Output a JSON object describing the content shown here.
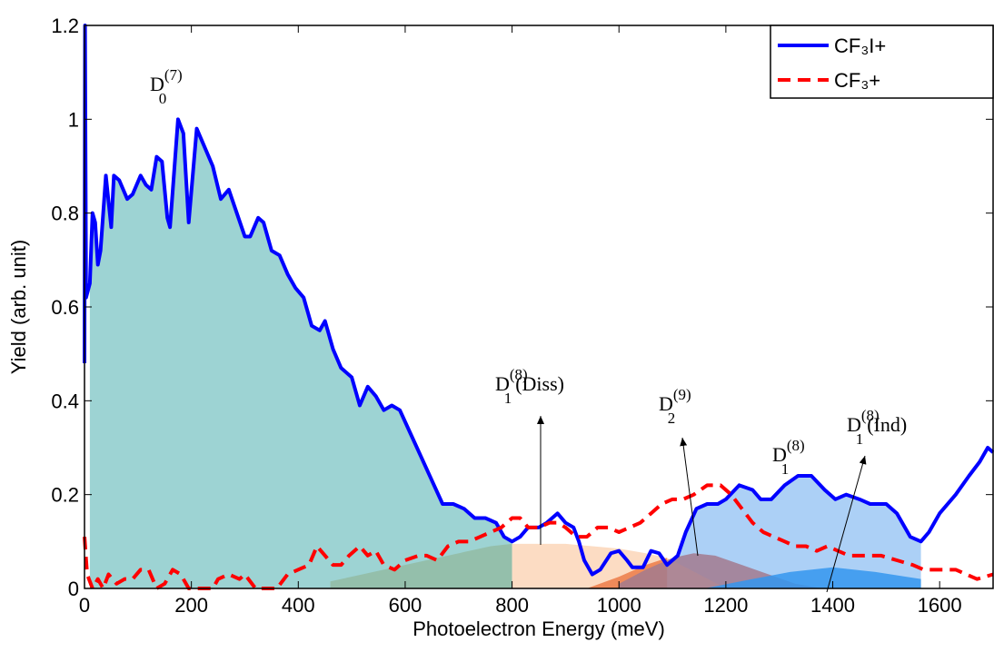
{
  "chart_data": {
    "type": "line",
    "xlabel": "Photoelectron Energy (meV)",
    "ylabel": "Yield (arb. unit)",
    "xlim": [
      0,
      1700
    ],
    "xticks": [
      0,
      200,
      400,
      600,
      800,
      1000,
      1200,
      1400,
      1600
    ],
    "ylim": [
      0,
      1.2
    ],
    "yticks": [
      0,
      0.2,
      0.4,
      0.6,
      0.8,
      1,
      1.2
    ],
    "legend": "upper right",
    "series": [
      {
        "name": "CF₃I+",
        "color": "#0000ff",
        "style": "solid",
        "x": [
          0,
          1,
          3,
          10,
          15,
          20,
          25,
          30,
          40,
          50,
          55,
          65,
          80,
          90,
          105,
          115,
          125,
          135,
          145,
          155,
          160,
          175,
          185,
          195,
          210,
          225,
          240,
          255,
          270,
          285,
          300,
          310,
          325,
          335,
          350,
          365,
          380,
          395,
          410,
          425,
          440,
          450,
          465,
          480,
          500,
          515,
          530,
          545,
          560,
          575,
          590,
          610,
          630,
          650,
          670,
          690,
          710,
          730,
          750,
          770,
          785,
          800,
          815,
          830,
          850,
          865,
          885,
          900,
          915,
          925,
          935,
          950,
          965,
          985,
          1000,
          1015,
          1025,
          1045,
          1060,
          1075,
          1090,
          1110,
          1125,
          1145,
          1165,
          1185,
          1200,
          1225,
          1250,
          1265,
          1285,
          1310,
          1335,
          1360,
          1385,
          1405,
          1425,
          1450,
          1470,
          1500,
          1520,
          1545,
          1565,
          1580,
          1600,
          1630,
          1655,
          1675,
          1690,
          1700
        ],
        "values": [
          0.48,
          1.2,
          0.62,
          0.65,
          0.8,
          0.78,
          0.69,
          0.72,
          0.88,
          0.77,
          0.88,
          0.87,
          0.83,
          0.84,
          0.88,
          0.86,
          0.85,
          0.92,
          0.91,
          0.79,
          0.77,
          1.0,
          0.97,
          0.78,
          0.98,
          0.94,
          0.9,
          0.83,
          0.85,
          0.8,
          0.75,
          0.75,
          0.79,
          0.78,
          0.72,
          0.71,
          0.67,
          0.64,
          0.62,
          0.56,
          0.55,
          0.57,
          0.51,
          0.47,
          0.45,
          0.39,
          0.43,
          0.41,
          0.38,
          0.39,
          0.38,
          0.33,
          0.28,
          0.23,
          0.18,
          0.18,
          0.17,
          0.15,
          0.15,
          0.14,
          0.11,
          0.1,
          0.11,
          0.13,
          0.13,
          0.14,
          0.16,
          0.14,
          0.13,
          0.1,
          0.06,
          0.03,
          0.04,
          0.075,
          0.08,
          0.06,
          0.045,
          0.045,
          0.08,
          0.075,
          0.05,
          0.07,
          0.12,
          0.17,
          0.18,
          0.18,
          0.19,
          0.22,
          0.21,
          0.19,
          0.19,
          0.22,
          0.24,
          0.24,
          0.21,
          0.19,
          0.2,
          0.19,
          0.18,
          0.18,
          0.16,
          0.11,
          0.1,
          0.12,
          0.16,
          0.2,
          0.24,
          0.27,
          0.3,
          0.29
        ]
      },
      {
        "name": "CF₃+",
        "color": "#ff0000",
        "style": "dashed",
        "x": [
          0,
          5,
          15,
          25,
          35,
          45,
          60,
          75,
          90,
          105,
          120,
          135,
          150,
          165,
          180,
          195,
          240,
          250,
          270,
          290,
          300,
          320,
          360,
          380,
          400,
          420,
          435,
          450,
          465,
          480,
          495,
          515,
          530,
          545,
          560,
          580,
          600,
          625,
          640,
          660,
          680,
          700,
          720,
          740,
          760,
          780,
          800,
          815,
          830,
          850,
          870,
          885,
          900,
          920,
          940,
          960,
          980,
          1000,
          1020,
          1040,
          1060,
          1080,
          1100,
          1120,
          1140,
          1165,
          1190,
          1210,
          1230,
          1250,
          1270,
          1290,
          1310,
          1330,
          1350,
          1370,
          1390,
          1410,
          1430,
          1460,
          1490,
          1520,
          1550,
          1570,
          1600,
          1630,
          1650,
          1670,
          1700
        ],
        "values": [
          0.11,
          0.03,
          0.0,
          0.02,
          0.0,
          0.03,
          0.01,
          0.02,
          0.02,
          0.04,
          0.04,
          0.0,
          0.01,
          0.04,
          0.03,
          0.0,
          0.0,
          0.02,
          0.03,
          0.02,
          0.03,
          0.0,
          0.0,
          0.03,
          0.04,
          0.05,
          0.09,
          0.07,
          0.05,
          0.05,
          0.07,
          0.09,
          0.07,
          0.08,
          0.05,
          0.04,
          0.06,
          0.07,
          0.07,
          0.06,
          0.09,
          0.1,
          0.1,
          0.11,
          0.12,
          0.13,
          0.15,
          0.15,
          0.13,
          0.13,
          0.14,
          0.14,
          0.13,
          0.11,
          0.11,
          0.13,
          0.13,
          0.12,
          0.13,
          0.14,
          0.16,
          0.18,
          0.19,
          0.19,
          0.2,
          0.22,
          0.22,
          0.2,
          0.17,
          0.14,
          0.12,
          0.11,
          0.1,
          0.09,
          0.09,
          0.08,
          0.09,
          0.08,
          0.07,
          0.07,
          0.07,
          0.06,
          0.05,
          0.04,
          0.04,
          0.04,
          0.03,
          0.02,
          0.03
        ]
      }
    ],
    "fills": [
      {
        "under": 0,
        "range": [
          10,
          800
        ],
        "color": "#9dd3d3"
      },
      {
        "under": 0,
        "range": [
          1090,
          1565
        ],
        "color": "#acd0f6"
      }
    ],
    "bands": [
      {
        "color": "#93bba3",
        "x": [
          460,
          520,
          600,
          680,
          760,
          800
        ],
        "values": [
          0.015,
          0.03,
          0.05,
          0.07,
          0.09,
          0.095
        ]
      },
      {
        "color": "#fbd6b8",
        "x": [
          800,
          850,
          900,
          950,
          1000,
          1050,
          1090,
          1150,
          1200
        ],
        "values": [
          0.095,
          0.095,
          0.095,
          0.09,
          0.085,
          0.075,
          0.065,
          0.03,
          0.0
        ]
      },
      {
        "color": "#ec7b48",
        "x": [
          940,
          1000,
          1050,
          1090
        ],
        "values": [
          0,
          0.025,
          0.05,
          0.065
        ]
      },
      {
        "color": "#a27a8e",
        "x": [
          1000,
          1050,
          1100,
          1140,
          1180,
          1230,
          1280,
          1330,
          1380
        ],
        "values": [
          0.01,
          0.04,
          0.065,
          0.075,
          0.07,
          0.05,
          0.03,
          0.01,
          0
        ]
      },
      {
        "color": "#3497ee",
        "x": [
          1160,
          1250,
          1320,
          1400,
          1480,
          1565
        ],
        "values": [
          0,
          0.02,
          0.035,
          0.045,
          0.035,
          0.02
        ]
      }
    ],
    "annotations": [
      {
        "text": "D",
        "sub": "0",
        "sup": "(7)"
      },
      {
        "text": "D",
        "sub": "1",
        "sup": "(8)",
        "suffix": "(Diss)"
      },
      {
        "text": "D",
        "sub": "2",
        "sup": "(9)"
      },
      {
        "text": "D",
        "sub": "1",
        "sup": "(8)"
      },
      {
        "text": "D",
        "sub": "1",
        "sup": "(8)",
        "suffix": "(Ind)"
      }
    ]
  }
}
